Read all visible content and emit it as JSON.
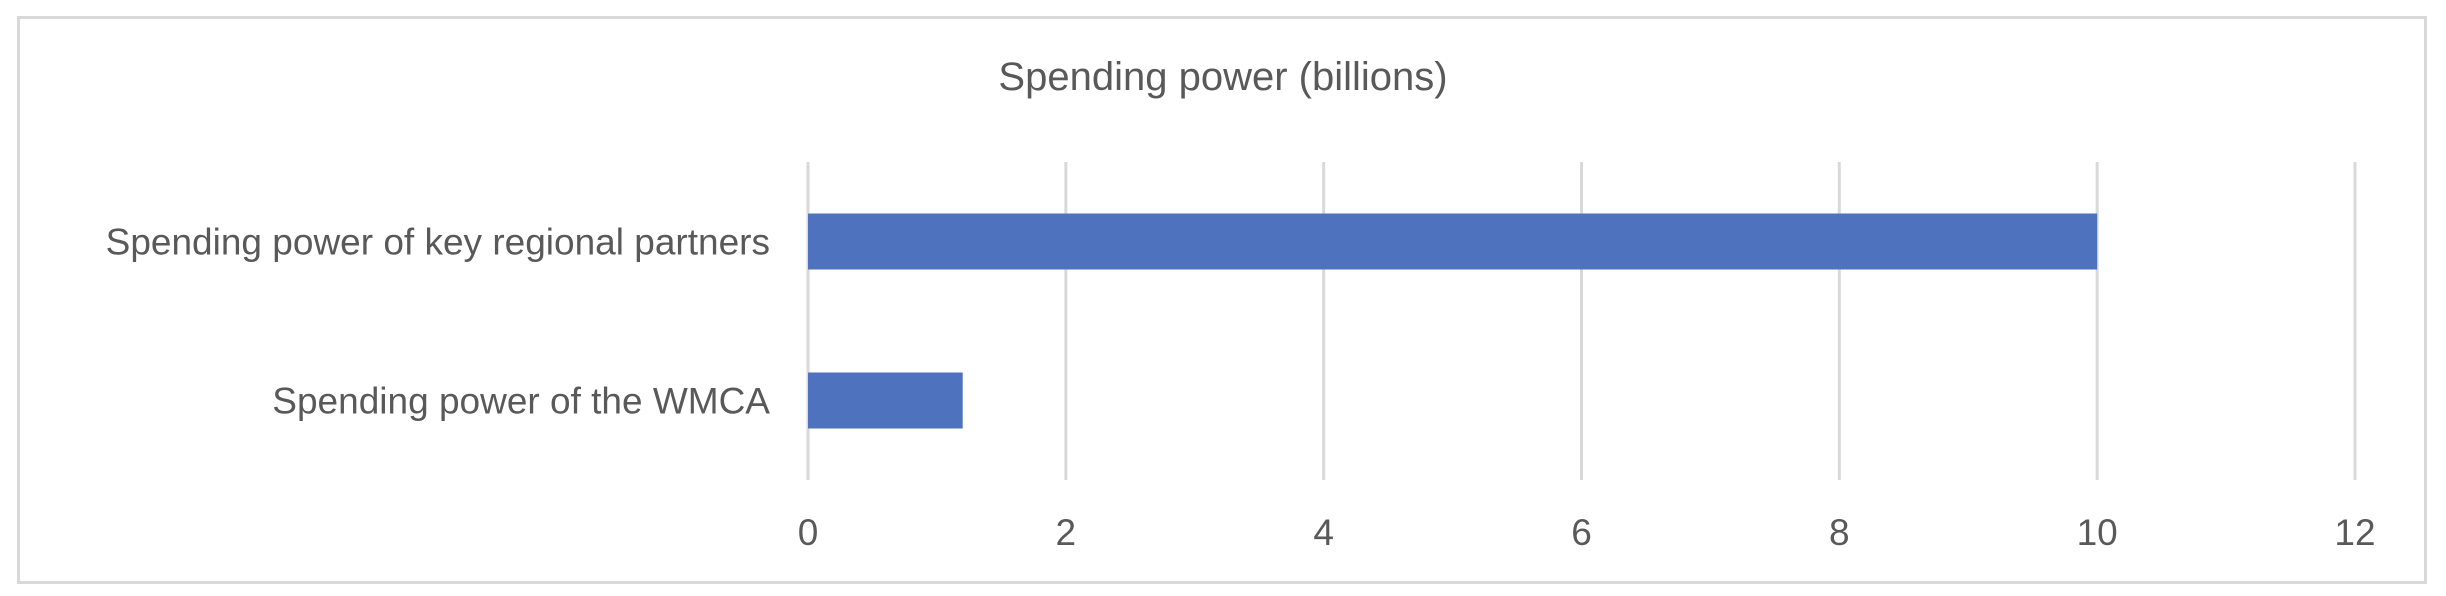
{
  "chart_data": {
    "type": "bar",
    "orientation": "horizontal",
    "title": "Spending power (billions)",
    "categories": [
      "Spending power of key regional partners",
      "Spending power of the WMCA"
    ],
    "values": [
      10,
      1.2
    ],
    "xlabel": "",
    "ylabel": "",
    "xlim": [
      0,
      12
    ],
    "xticks": [
      "0",
      "2",
      "4",
      "6",
      "8",
      "10",
      "12"
    ],
    "grid": "vertical",
    "legend": "none",
    "bar_color": "#4F72BE",
    "grid_color": "#d9d9d9"
  }
}
